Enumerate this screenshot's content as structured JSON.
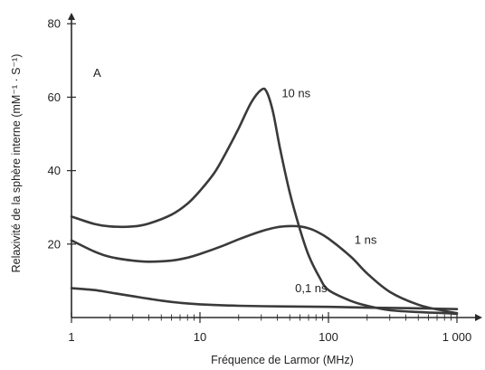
{
  "chart_data": {
    "type": "line",
    "panel_label": "A",
    "xlabel": "Fréquence de Larmor (MHz)",
    "ylabel": "Relaxivité de la sphère interne (mM⁻¹ · S⁻¹)",
    "x_scale": "log",
    "xlim": [
      1,
      1000
    ],
    "ylim": [
      0,
      84
    ],
    "x_ticks": [
      {
        "value": 1,
        "label": "1"
      },
      {
        "value": 10,
        "label": "10"
      },
      {
        "value": 100,
        "label": "100"
      },
      {
        "value": 1000,
        "label": "1 000"
      }
    ],
    "y_ticks": [
      {
        "value": 20,
        "label": "20"
      },
      {
        "value": 40,
        "label": "40"
      },
      {
        "value": 60,
        "label": "60"
      },
      {
        "value": 80,
        "label": "80"
      }
    ],
    "grid": false,
    "series": [
      {
        "name": "10 ns",
        "x": [
          1,
          1.5,
          2,
          3,
          4,
          6,
          8,
          10,
          13,
          16,
          20,
          25,
          30,
          33,
          37,
          42,
          50,
          60,
          70,
          85,
          100,
          150,
          200,
          300,
          500,
          800,
          1000
        ],
        "y": [
          27.5,
          25.5,
          24.8,
          24.8,
          25.6,
          28.0,
          31.0,
          34.5,
          39.5,
          45.0,
          51.5,
          58.5,
          62.0,
          61.5,
          56.0,
          46.0,
          34.0,
          24.0,
          17.0,
          11.0,
          7.5,
          4.5,
          3.2,
          2.0,
          1.5,
          1.2,
          1.0
        ]
      },
      {
        "name": "1 ns",
        "x": [
          1,
          1.5,
          2,
          3,
          4,
          6,
          8,
          10,
          15,
          20,
          30,
          40,
          50,
          60,
          70,
          80,
          100,
          150,
          200,
          300,
          500,
          800,
          1000
        ],
        "y": [
          21.0,
          18.0,
          16.5,
          15.5,
          15.2,
          15.5,
          16.3,
          17.3,
          19.5,
          21.3,
          23.5,
          24.6,
          24.9,
          24.8,
          24.3,
          23.5,
          21.5,
          16.5,
          12.0,
          7.0,
          3.5,
          1.8,
          1.2
        ]
      },
      {
        "name": "0,1 ns",
        "x": [
          1,
          1.5,
          2,
          3,
          5,
          7,
          10,
          20,
          50,
          100,
          200,
          500,
          1000
        ],
        "y": [
          8.0,
          7.5,
          6.8,
          5.8,
          4.6,
          4.0,
          3.6,
          3.2,
          3.0,
          2.9,
          2.7,
          2.5,
          2.3
        ]
      }
    ]
  }
}
